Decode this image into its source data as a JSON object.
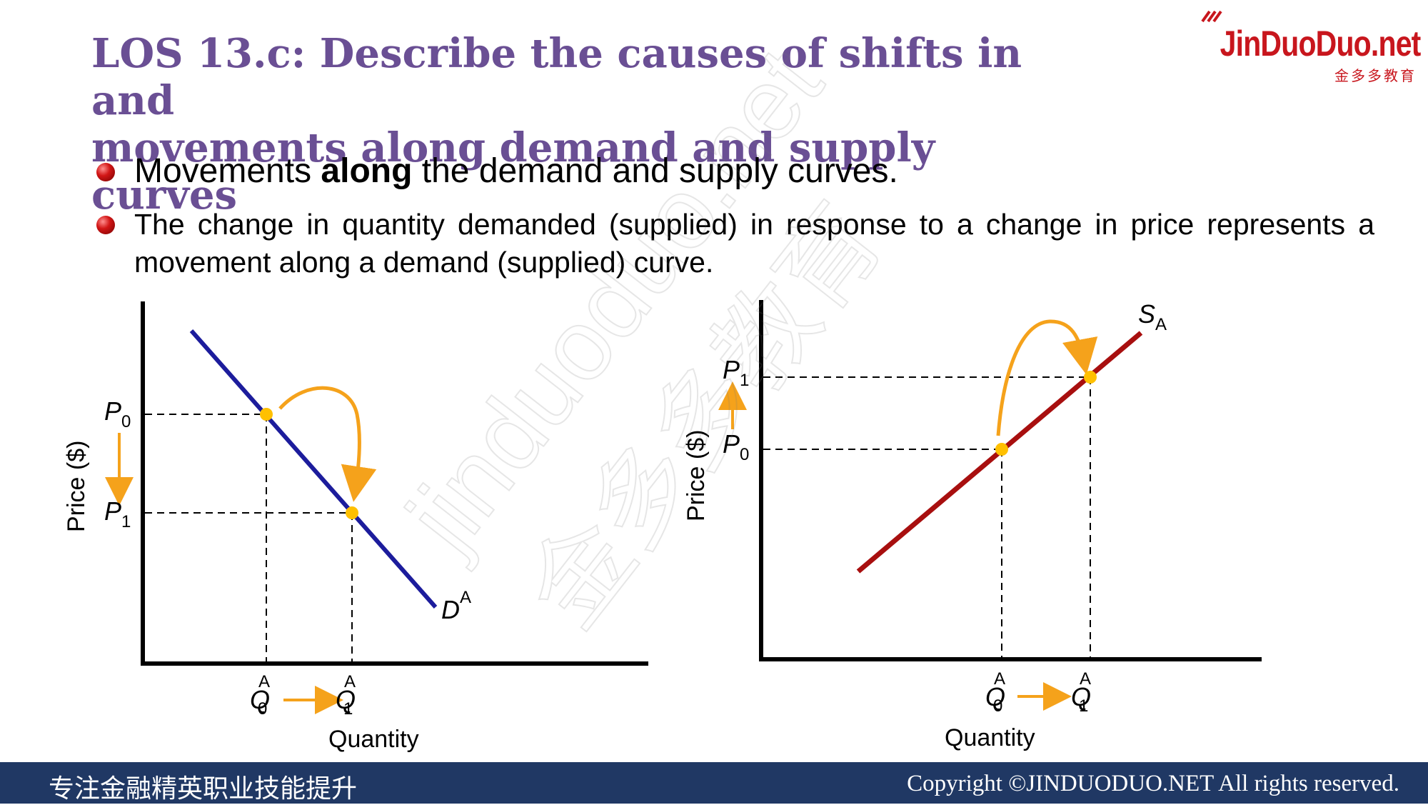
{
  "slide": {
    "title_line1": "LOS 13.c: Describe the causes of shifts in and",
    "title_line2": "movements along demand and supply curves",
    "bullets": {
      "b1_pre": "Movements ",
      "b1_bold": "along",
      "b1_post": " the demand and supply curves.",
      "b2": "The change in quantity demanded (supplied) in response to a change in price represents a movement along a demand (supplied) curve."
    }
  },
  "logo": {
    "main": "JinDuoDuo.net",
    "sub": "金多多教育"
  },
  "watermark": {
    "line1": "jinduoduo.net",
    "line2": "金多多教育"
  },
  "demand_chart": {
    "y_label": "Price ($)",
    "x_label": "Quantity",
    "curve_label": "D",
    "curve_sup": "A",
    "p0": "P",
    "p0_sub": "0",
    "p1": "P",
    "p1_sub": "1",
    "q0": "Q",
    "q0_sup": "A",
    "q0_sub": "0",
    "q1": "Q",
    "q1_sup": "A",
    "q1_sub": "1",
    "curve_color": "#1c1c9c",
    "point_color": "#ffc000",
    "arrow_color": "#f5a21b"
  },
  "supply_chart": {
    "y_label": "Price ($)",
    "x_label": "Quantity",
    "curve_label": "S",
    "curve_sub": "A",
    "p0": "P",
    "p0_sub": "0",
    "p1": "P",
    "p1_sub": "1",
    "q0": "Q",
    "q0_sup": "A",
    "q0_sub": "0",
    "q1": "Q",
    "q1_sup": "A",
    "q1_sub": "1",
    "curve_color": "#a80f0f"
  },
  "footer": {
    "left": "专注金融精英职业技能提升",
    "right": "Copyright ©JINDUODUO.NET All rights reserved."
  }
}
